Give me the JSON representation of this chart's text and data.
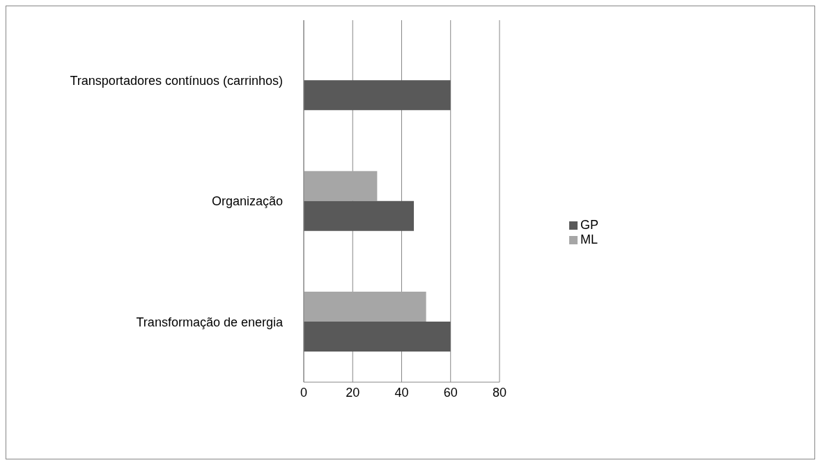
{
  "chart_data": {
    "type": "bar",
    "orientation": "horizontal",
    "categories": [
      "Transportadores contínuos (carrinhos)",
      "Organização",
      "Transformação de energia"
    ],
    "series": [
      {
        "name": "ML",
        "color": "#a6a6a6",
        "values": [
          null,
          30,
          50
        ]
      },
      {
        "name": "GP",
        "color": "#595959",
        "values": [
          60,
          45,
          60
        ]
      }
    ],
    "xlim": [
      0,
      80
    ],
    "xticks": [
      0,
      20,
      40,
      60,
      80
    ],
    "grid": "x",
    "legend": "right"
  }
}
